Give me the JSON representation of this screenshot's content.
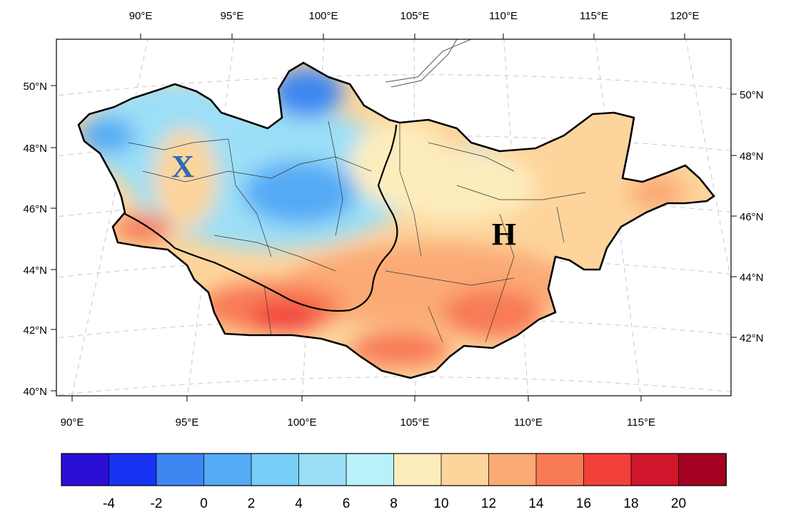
{
  "map": {
    "top_lon_labels": [
      "90°E",
      "95°E",
      "100°E",
      "105°E",
      "110°E",
      "115°E",
      "120°E"
    ],
    "bottom_lon_labels": [
      "90°E",
      "95°E",
      "100°E",
      "105°E",
      "110°E",
      "115°E"
    ],
    "left_lat_labels": [
      "50°N",
      "48°N",
      "46°N",
      "44°N",
      "42°N",
      "40°N"
    ],
    "right_lat_labels": [
      "50°N",
      "48°N",
      "46°N",
      "44°N",
      "42°N"
    ],
    "region_labels": [
      {
        "text": "X",
        "color": "#2a6cb5"
      },
      {
        "text": "H",
        "color": "#000000"
      }
    ]
  },
  "colorbar": {
    "colors": [
      "#2a0fd6",
      "#1833f2",
      "#3d86f2",
      "#55aaf5",
      "#78cff7",
      "#9bdff7",
      "#b8f1fa",
      "#fdedbd",
      "#fdd59c",
      "#fbaa74",
      "#f87a55",
      "#f2413b",
      "#d0172b",
      "#a30122"
    ],
    "labels": [
      "-4",
      "-2",
      "0",
      "2",
      "4",
      "6",
      "8",
      "10",
      "12",
      "14",
      "16",
      "18",
      "20"
    ]
  }
}
